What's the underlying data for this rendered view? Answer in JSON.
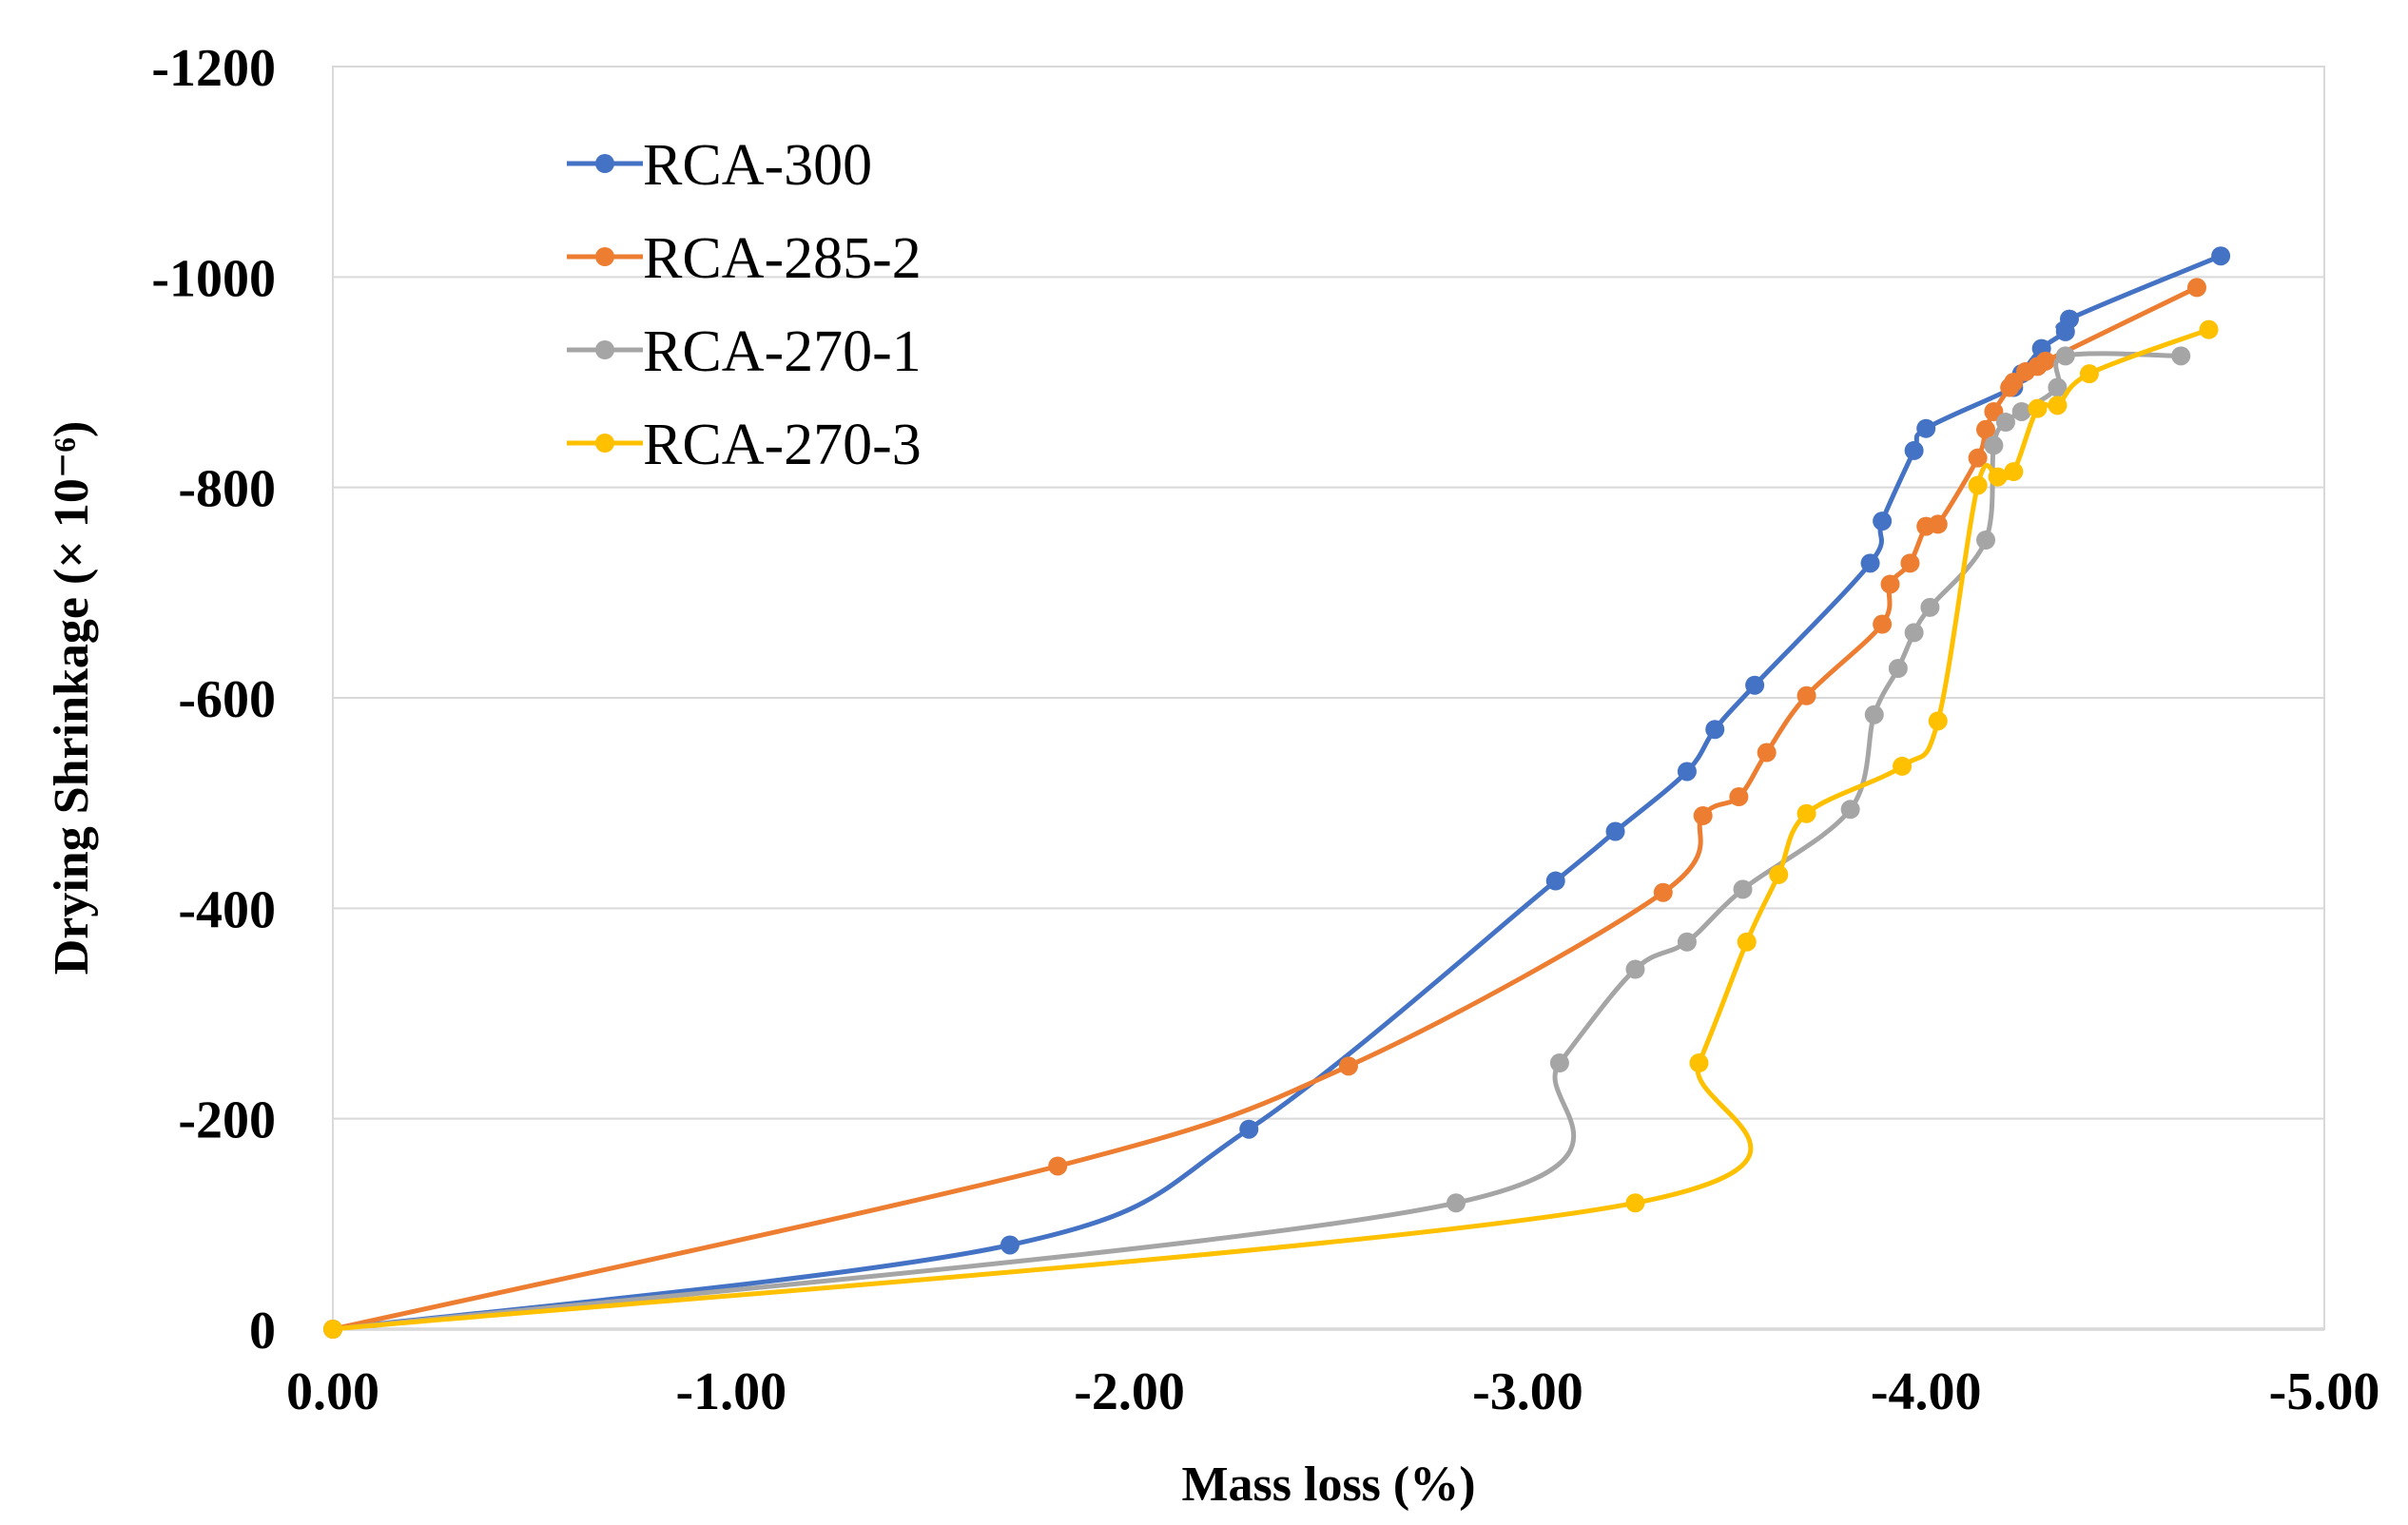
{
  "chart_data": {
    "type": "line",
    "title": "",
    "xlabel": "Mass loss (%)",
    "ylabel": "Drying Shrinkage (× 10⁻⁶)",
    "xlim": [
      0,
      -5
    ],
    "ylim": [
      0,
      -1200
    ],
    "x_ticks": [
      0,
      -1,
      -2,
      -3,
      -4,
      -5
    ],
    "x_tick_labels": [
      "0.00",
      "-1.00",
      "-2.00",
      "-3.00",
      "-4.00",
      "-5.00"
    ],
    "y_ticks": [
      0,
      -200,
      -400,
      -600,
      -800,
      -1000,
      -1200
    ],
    "y_tick_labels": [
      "0",
      "-200",
      "-400",
      "-600",
      "-800",
      "-1000",
      "-1200"
    ],
    "grid": "horizontal",
    "legend": "top-left",
    "series": [
      {
        "name": "RCA-300",
        "color": "#4472C4",
        "x": [
          0,
          -1.7,
          -2.3,
          -3.07,
          -3.22,
          -3.4,
          -3.47,
          -3.57,
          -3.86,
          -3.89,
          -3.97,
          -4.0,
          -4.22,
          -4.24,
          -4.29,
          -4.35,
          -4.36,
          -4.74
        ],
        "y": [
          0,
          -80,
          -190,
          -426,
          -473,
          -530,
          -570,
          -612,
          -728,
          -768,
          -835,
          -856,
          -895,
          -908,
          -932,
          -948,
          -960,
          -1020
        ]
      },
      {
        "name": "RCA-285-2",
        "color": "#ED7D31",
        "x": [
          0,
          -1.82,
          -2.55,
          -3.34,
          -3.44,
          -3.53,
          -3.6,
          -3.7,
          -3.89,
          -3.91,
          -3.96,
          -4.0,
          -4.03,
          -4.13,
          -4.15,
          -4.17,
          -4.21,
          -4.22,
          -4.25,
          -4.28,
          -4.3,
          -4.68
        ],
        "y": [
          0,
          -155,
          -250,
          -415,
          -488,
          -506,
          -548,
          -602,
          -670,
          -708,
          -728,
          -763,
          -765,
          -828,
          -855,
          -872,
          -895,
          -900,
          -910,
          -915,
          -920,
          -990
        ]
      },
      {
        "name": "RCA-270-1",
        "color": "#A5A5A5",
        "x": [
          0,
          -2.82,
          -3.08,
          -3.27,
          -3.4,
          -3.54,
          -3.81,
          -3.87,
          -3.93,
          -3.97,
          -4.01,
          -4.15,
          -4.17,
          -4.2,
          -4.24,
          -4.33,
          -4.35,
          -4.64
        ],
        "y": [
          0,
          -120,
          -253,
          -342,
          -368,
          -418,
          -494,
          -584,
          -628,
          -662,
          -686,
          -750,
          -840,
          -862,
          -872,
          -895,
          -925,
          -925
        ]
      },
      {
        "name": "RCA-270-3",
        "color": "#FFC000",
        "x": [
          0,
          -3.27,
          -3.43,
          -3.55,
          -3.63,
          -3.7,
          -3.94,
          -4.03,
          -4.13,
          -4.18,
          -4.22,
          -4.28,
          -4.33,
          -4.41,
          -4.71
        ],
        "y": [
          0,
          -120,
          -253,
          -368,
          -432,
          -490,
          -535,
          -578,
          -802,
          -810,
          -815,
          -875,
          -878,
          -908,
          -950
        ]
      }
    ]
  }
}
